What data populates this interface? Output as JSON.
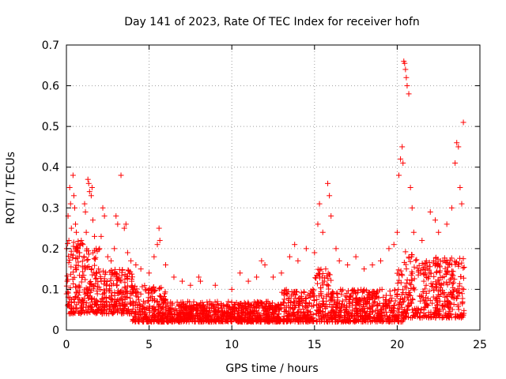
{
  "chart_data": {
    "type": "scatter",
    "title": "Day 141 of 2023, Rate Of TEC Index for receiver hofn",
    "xlabel": "GPS time / hours",
    "ylabel": "ROTI / TECUs",
    "xlim": [
      0,
      25
    ],
    "ylim": [
      0,
      0.7
    ],
    "xticks": [
      0,
      5,
      10,
      15,
      20,
      25
    ],
    "yticks": [
      0,
      0.1,
      0.2,
      0.3,
      0.4,
      0.5,
      0.6,
      0.7
    ],
    "grid": true,
    "marker": "+",
    "color": "#ff0000",
    "series": [
      {
        "points": [
          [
            0.05,
            0.12
          ],
          [
            0.1,
            0.28
          ],
          [
            0.15,
            0.22
          ],
          [
            0.2,
            0.35
          ],
          [
            0.25,
            0.31
          ],
          [
            0.3,
            0.25
          ],
          [
            0.4,
            0.38
          ],
          [
            0.45,
            0.33
          ],
          [
            0.5,
            0.3
          ],
          [
            0.55,
            0.26
          ],
          [
            0.6,
            0.24
          ],
          [
            0.7,
            0.2
          ],
          [
            0.8,
            0.19
          ],
          [
            0.9,
            0.22
          ],
          [
            1.0,
            0.21
          ],
          [
            1.1,
            0.31
          ],
          [
            1.15,
            0.29
          ],
          [
            1.2,
            0.24
          ],
          [
            1.3,
            0.37
          ],
          [
            1.35,
            0.36
          ],
          [
            1.4,
            0.34
          ],
          [
            1.5,
            0.33
          ],
          [
            1.55,
            0.35
          ],
          [
            1.6,
            0.27
          ],
          [
            1.7,
            0.23
          ],
          [
            1.8,
            0.2
          ],
          [
            2.0,
            0.2
          ],
          [
            2.1,
            0.23
          ],
          [
            2.2,
            0.3
          ],
          [
            2.3,
            0.28
          ],
          [
            2.5,
            0.18
          ],
          [
            2.7,
            0.17
          ],
          [
            2.9,
            0.2
          ],
          [
            3.0,
            0.28
          ],
          [
            3.1,
            0.26
          ],
          [
            3.3,
            0.38
          ],
          [
            3.5,
            0.25
          ],
          [
            3.6,
            0.26
          ],
          [
            3.7,
            0.19
          ],
          [
            3.9,
            0.17
          ],
          [
            4.2,
            0.16
          ],
          [
            4.5,
            0.15
          ],
          [
            5.0,
            0.14
          ],
          [
            5.3,
            0.18
          ],
          [
            5.5,
            0.21
          ],
          [
            5.6,
            0.25
          ],
          [
            5.65,
            0.22
          ],
          [
            6.0,
            0.16
          ],
          [
            6.5,
            0.13
          ],
          [
            7.0,
            0.12
          ],
          [
            7.5,
            0.11
          ],
          [
            8.0,
            0.13
          ],
          [
            8.1,
            0.12
          ],
          [
            9.0,
            0.11
          ],
          [
            10.0,
            0.1
          ],
          [
            10.5,
            0.14
          ],
          [
            11.0,
            0.12
          ],
          [
            11.5,
            0.13
          ],
          [
            11.8,
            0.17
          ],
          [
            12.0,
            0.16
          ],
          [
            12.5,
            0.13
          ],
          [
            13.0,
            0.14
          ],
          [
            13.5,
            0.18
          ],
          [
            13.8,
            0.21
          ],
          [
            14.0,
            0.17
          ],
          [
            14.5,
            0.2
          ],
          [
            15.0,
            0.19
          ],
          [
            15.2,
            0.26
          ],
          [
            15.3,
            0.31
          ],
          [
            15.5,
            0.24
          ],
          [
            15.8,
            0.36
          ],
          [
            15.9,
            0.33
          ],
          [
            16.0,
            0.28
          ],
          [
            16.3,
            0.2
          ],
          [
            16.5,
            0.17
          ],
          [
            17.0,
            0.16
          ],
          [
            17.5,
            0.18
          ],
          [
            18.0,
            0.15
          ],
          [
            18.5,
            0.16
          ],
          [
            19.0,
            0.17
          ],
          [
            19.5,
            0.2
          ],
          [
            19.8,
            0.21
          ],
          [
            20.0,
            0.24
          ],
          [
            20.1,
            0.38
          ],
          [
            20.2,
            0.42
          ],
          [
            20.3,
            0.45
          ],
          [
            20.35,
            0.41
          ],
          [
            20.4,
            0.66
          ],
          [
            20.45,
            0.655
          ],
          [
            20.5,
            0.64
          ],
          [
            20.55,
            0.62
          ],
          [
            20.6,
            0.6
          ],
          [
            20.7,
            0.58
          ],
          [
            20.8,
            0.35
          ],
          [
            20.9,
            0.3
          ],
          [
            21.0,
            0.24
          ],
          [
            21.5,
            0.22
          ],
          [
            22.0,
            0.29
          ],
          [
            22.3,
            0.27
          ],
          [
            22.5,
            0.24
          ],
          [
            23.0,
            0.26
          ],
          [
            23.3,
            0.3
          ],
          [
            23.5,
            0.41
          ],
          [
            23.6,
            0.46
          ],
          [
            23.7,
            0.45
          ],
          [
            23.8,
            0.35
          ],
          [
            23.9,
            0.31
          ],
          [
            24.0,
            0.51
          ]
        ]
      }
    ]
  }
}
